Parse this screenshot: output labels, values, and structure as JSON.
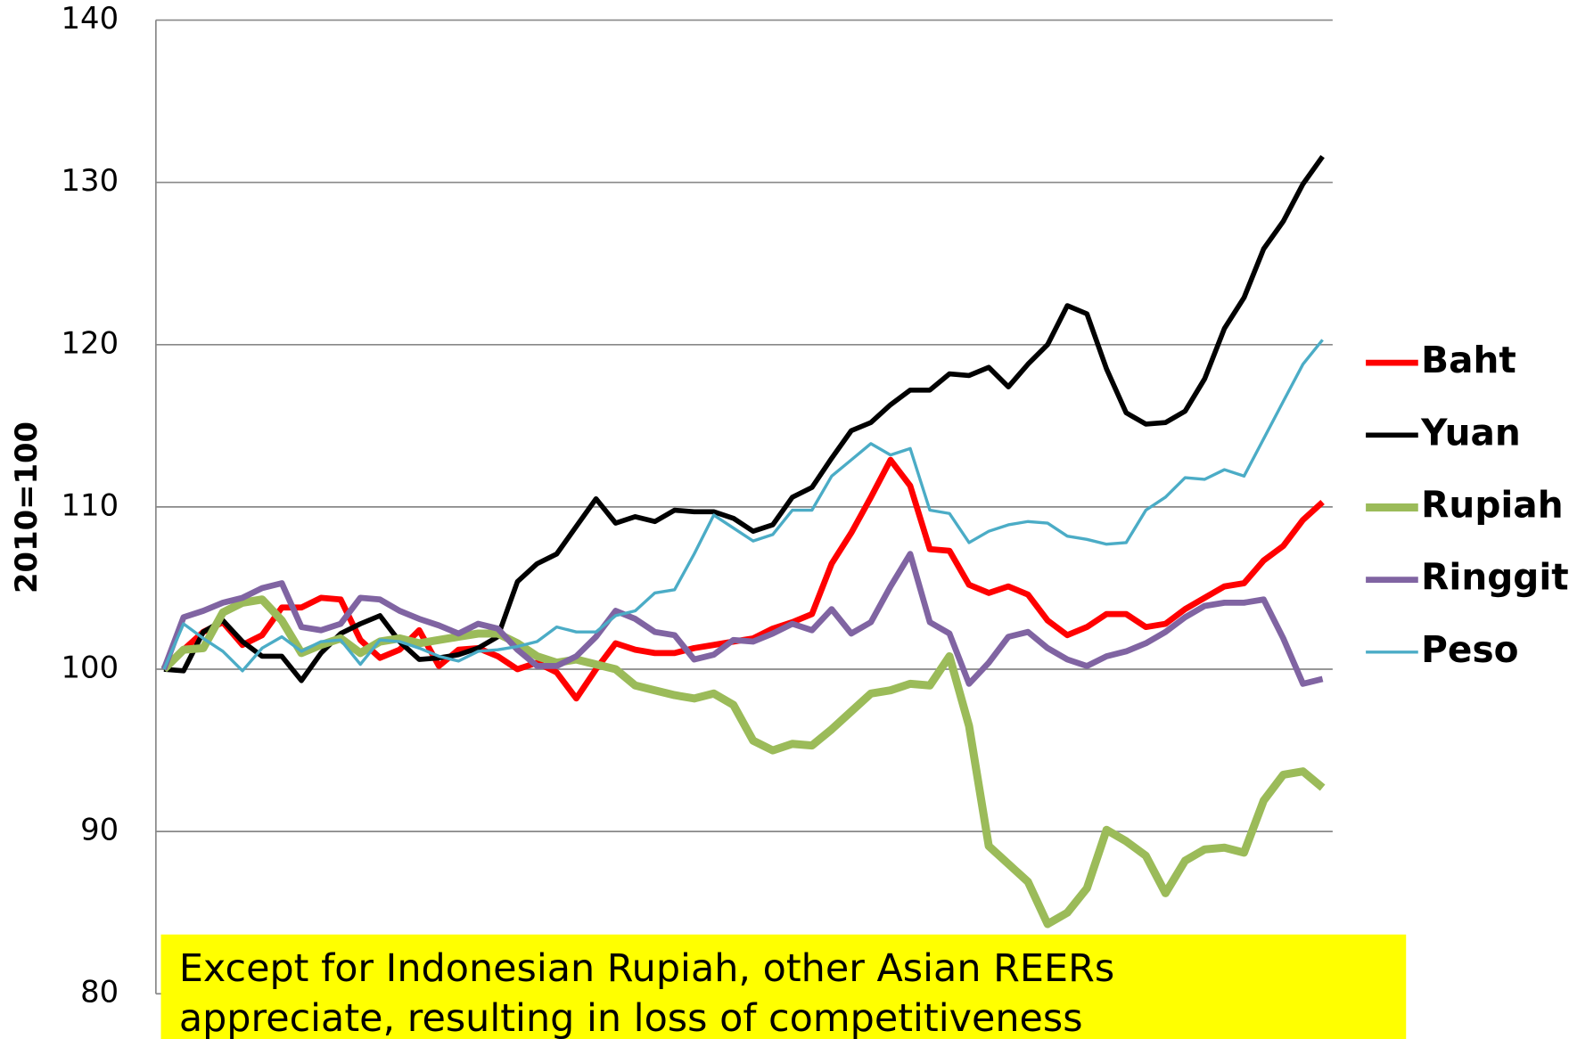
{
  "chart_data": {
    "type": "line",
    "y_label": "2010=100",
    "annotation": [
      "Except for Indonesian Rupiah, other Asian  REERs",
      "appreciate,  resulting in loss of competitiveness"
    ],
    "categories": [
      null,
      null,
      null,
      null,
      null,
      null,
      null,
      null,
      null,
      null,
      null,
      null,
      null,
      null,
      null,
      null,
      null,
      null,
      null,
      null,
      null,
      null,
      null,
      null,
      null,
      null,
      null,
      null,
      null,
      null,
      null,
      null,
      null,
      null,
      null,
      null,
      null,
      null,
      null,
      null,
      null,
      null,
      null,
      null,
      null,
      null,
      null,
      null,
      null,
      null,
      null,
      null,
      null,
      null,
      null,
      null,
      null,
      null,
      null,
      null
    ],
    "ylim": [
      80,
      140
    ],
    "yticks": [
      80,
      90,
      100,
      110,
      120,
      130,
      140
    ],
    "grid": true,
    "legend": "right",
    "series": [
      {
        "name": "Baht",
        "color": "#ff0000",
        "values": [
          100,
          101.2,
          102.3,
          102.9,
          101.5,
          102.1,
          103.8,
          103.8,
          104.4,
          104.3,
          101.8,
          100.7,
          101.2,
          102.4,
          100.2,
          101.2,
          101.3,
          100.8,
          100,
          100.4,
          99.8,
          98.2,
          100,
          101.6,
          101.2,
          101,
          101,
          101.3,
          101.5,
          101.7,
          101.9,
          102.5,
          102.9,
          103.4,
          106.5,
          108.4,
          110.6,
          112.9,
          111.3,
          107.4,
          107.3,
          105.2,
          104.7,
          105.1,
          104.6,
          103,
          102.1,
          102.6,
          103.4,
          103.4,
          102.6,
          102.8,
          103.7,
          104.4,
          105.1,
          105.3,
          106.7,
          107.6,
          109.2,
          110.3
        ]
      },
      {
        "name": "Yuan",
        "color": "#000000",
        "values": [
          100,
          99.9,
          102.3,
          103,
          101.7,
          100.8,
          100.8,
          99.3,
          101,
          102.2,
          102.8,
          103.3,
          101.7,
          100.6,
          100.7,
          100.9,
          101.3,
          102,
          105.4,
          106.5,
          107.1,
          108.8,
          110.5,
          109,
          109.4,
          109.1,
          109.8,
          109.7,
          109.7,
          109.3,
          108.5,
          108.9,
          110.6,
          111.2,
          113,
          114.7,
          115.2,
          116.3,
          117.2,
          117.2,
          118.2,
          118.1,
          118.6,
          117.4,
          118.8,
          120,
          122.4,
          121.9,
          118.5,
          115.8,
          115.1,
          115.2,
          115.9,
          117.9,
          121,
          122.9,
          125.9,
          127.6,
          129.9,
          131.6
        ]
      },
      {
        "name": "Rupiah",
        "color": "#9bbb59",
        "values": [
          100,
          101.2,
          101.3,
          103.5,
          104.1,
          104.3,
          103,
          101,
          101.5,
          101.9,
          101,
          101.7,
          101.9,
          101.6,
          101.8,
          102,
          102.2,
          102.2,
          101.6,
          100.8,
          100.4,
          100.6,
          100.3,
          100,
          99,
          98.7,
          98.4,
          98.2,
          98.5,
          97.8,
          95.6,
          95,
          95.4,
          95.3,
          96.3,
          97.4,
          98.5,
          98.7,
          99.1,
          99,
          100.8,
          96.5,
          89.1,
          88,
          86.9,
          84.3,
          85,
          86.5,
          90.1,
          89.4,
          88.5,
          86.2,
          88.2,
          88.9,
          89,
          88.7,
          91.9,
          93.5,
          93.7,
          92.7
        ]
      },
      {
        "name": "Ringgit",
        "color": "#8064a2",
        "values": [
          100,
          103.2,
          103.6,
          104.1,
          104.4,
          105,
          105.3,
          102.6,
          102.4,
          102.8,
          104.4,
          104.3,
          103.6,
          103.1,
          102.7,
          102.2,
          102.8,
          102.5,
          101.2,
          100.2,
          100.2,
          100.8,
          102,
          103.6,
          103.1,
          102.3,
          102.1,
          100.6,
          100.9,
          101.8,
          101.7,
          102.2,
          102.8,
          102.4,
          103.7,
          102.2,
          102.9,
          105.1,
          107.1,
          102.9,
          102.2,
          99.1,
          100.4,
          102,
          102.3,
          101.3,
          100.6,
          100.2,
          100.8,
          101.1,
          101.6,
          102.3,
          103.2,
          103.9,
          104.1,
          104.1,
          104.3,
          101.9,
          99.1,
          99.4
        ]
      },
      {
        "name": "Peso",
        "color": "#4bacc6",
        "values": [
          100,
          102.8,
          101.9,
          101.1,
          99.9,
          101.3,
          102,
          101.1,
          101.7,
          101.8,
          100.3,
          101.8,
          101.7,
          101.3,
          100.8,
          100.5,
          101.1,
          101.2,
          101.4,
          101.7,
          102.6,
          102.3,
          102.3,
          103.3,
          103.6,
          104.7,
          104.9,
          107.1,
          109.5,
          108.7,
          107.9,
          108.3,
          109.8,
          109.8,
          111.9,
          112.9,
          113.9,
          113.2,
          113.6,
          109.8,
          109.6,
          107.8,
          108.5,
          108.9,
          109.1,
          109,
          108.2,
          108,
          107.7,
          107.8,
          109.8,
          110.6,
          111.8,
          111.7,
          112.3,
          111.9,
          114.2,
          116.5,
          118.8,
          120.3
        ]
      }
    ]
  }
}
